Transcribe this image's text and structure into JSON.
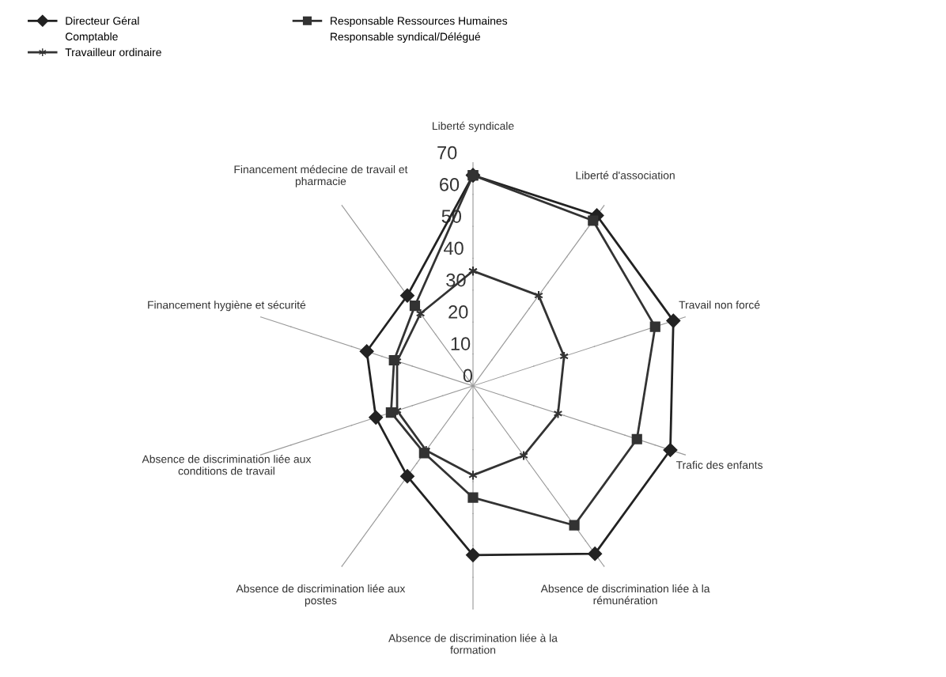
{
  "chart_data": {
    "type": "radar",
    "categories": [
      "Liberté syndicale",
      "Liberté d'association",
      "Travail non forcé",
      "Trafic des enfants",
      "Absence de discrimination liée à la\nrémunération",
      "Absence de discrimination liée à la\nformation",
      "Absence de discrimination liée aux\npostes",
      "Absence de discrimination liée aux\nconditions de travail",
      "Financement hygiène et sécurité",
      "Financement médecine de travail et\npharmacie"
    ],
    "series": [
      {
        "name": "Directeur Géral",
        "color": "#222222",
        "marker": "diamond",
        "values": [
          66,
          66,
          66,
          65,
          65,
          53,
          35,
          32,
          35,
          35
        ]
      },
      {
        "name": "Responsable Ressources Humaines",
        "color": "#333333",
        "marker": "square",
        "values": [
          66,
          64,
          60,
          54,
          54,
          35,
          26,
          27,
          26,
          31
        ]
      },
      {
        "name": "Travailleur ordinaire",
        "color": "#333333",
        "marker": "cross",
        "values": [
          36,
          35,
          30,
          28,
          27,
          28,
          25,
          25,
          25,
          28
        ]
      }
    ],
    "ylim": [
      0,
      70
    ],
    "yticks": [
      0,
      10,
      20,
      30,
      40,
      50,
      60,
      70
    ],
    "annotations": [
      "Comptable",
      "Responsable syndical/Délégué"
    ],
    "grid": "x",
    "legend": "top left",
    "line_style": "solid"
  }
}
